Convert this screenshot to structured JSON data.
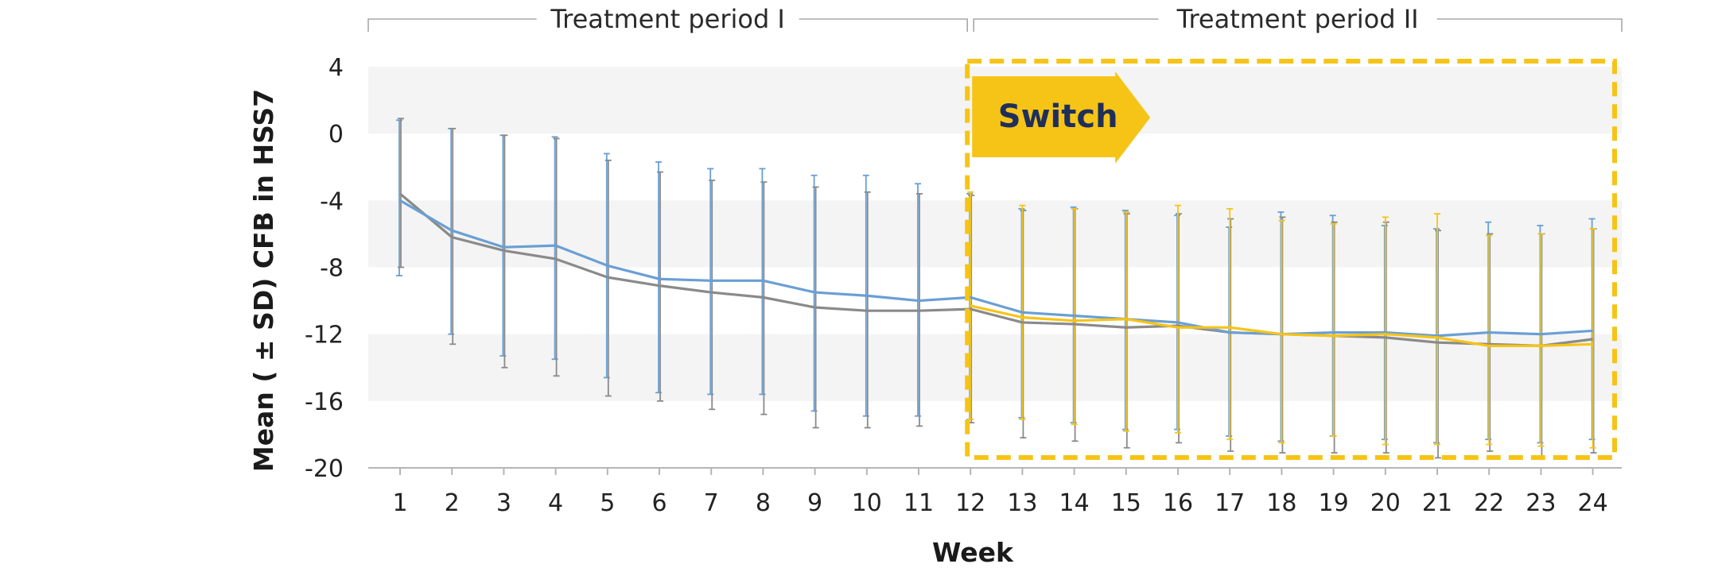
{
  "chart_data": {
    "type": "line",
    "xlabel": "Week",
    "ylabel": "Mean ( ± SD) CFB in HSS7",
    "ylim": [
      -20,
      4
    ],
    "yticks": [
      4,
      0,
      -4,
      -8,
      -12,
      -16,
      -20
    ],
    "x": [
      1,
      2,
      3,
      4,
      5,
      6,
      7,
      8,
      9,
      10,
      11,
      12,
      13,
      14,
      15,
      16,
      17,
      18,
      19,
      20,
      21,
      22,
      23,
      24
    ],
    "periods": [
      {
        "label": "Treatment period I",
        "from": 0.4,
        "to": 12
      },
      {
        "label": "Treatment period II",
        "from": 12,
        "to": 24.9
      }
    ],
    "annotation": {
      "label": "Switch",
      "week": 12
    },
    "colors": {
      "blue": "#6a9fd4",
      "gray": "#8a8a8a",
      "yellow": "#f6c416",
      "band": "#f4f4f4",
      "axis": "#b5b5b5"
    },
    "series": [
      {
        "color": "blue",
        "x": [
          1,
          2,
          3,
          4,
          5,
          6,
          7,
          8,
          9,
          10,
          11,
          12,
          13,
          14,
          15,
          16,
          17,
          18,
          19,
          20,
          21,
          22,
          23,
          24
        ],
        "values": [
          -4.0,
          -5.8,
          -6.8,
          -6.7,
          -7.9,
          -8.7,
          -8.8,
          -8.8,
          -9.5,
          -9.7,
          -10.0,
          -9.8,
          -10.7,
          -10.9,
          -11.1,
          -11.3,
          -11.9,
          -12.0,
          -11.9,
          -11.9,
          -12.1,
          -11.9,
          -12.0,
          -11.8
        ],
        "sd_low": [
          -8.5,
          -12.0,
          -13.3,
          -13.5,
          -14.6,
          -15.5,
          -15.6,
          -15.6,
          -16.6,
          -16.9,
          -16.9,
          -17.1,
          -17.0,
          -17.3,
          -17.7,
          -17.7,
          -18.1,
          -18.4,
          -18.1,
          -18.3,
          -18.5,
          -18.3,
          -18.5,
          -18.3
        ],
        "sd_high": [
          0.8,
          0.3,
          -0.1,
          -0.2,
          -1.2,
          -1.7,
          -2.1,
          -2.1,
          -2.5,
          -2.5,
          -3.0,
          -3.6,
          -4.5,
          -4.4,
          -4.6,
          -4.9,
          -5.6,
          -4.7,
          -4.9,
          -5.5,
          -5.7,
          -5.3,
          -5.5,
          -5.1
        ]
      },
      {
        "color": "gray",
        "x": [
          1,
          2,
          3,
          4,
          5,
          6,
          7,
          8,
          9,
          10,
          11,
          12,
          13,
          14,
          15,
          16,
          17,
          18,
          19,
          20,
          21,
          22,
          23,
          24
        ],
        "values": [
          -3.6,
          -6.2,
          -7.0,
          -7.5,
          -8.6,
          -9.1,
          -9.5,
          -9.8,
          -10.4,
          -10.6,
          -10.6,
          -10.5,
          -11.3,
          -11.4,
          -11.6,
          -11.5,
          -11.9,
          -12.0,
          -12.1,
          -12.2,
          -12.5,
          -12.6,
          -12.7,
          -12.3
        ],
        "sd_low": [
          -8.0,
          -12.6,
          -14.0,
          -14.5,
          -15.7,
          -16.0,
          -16.5,
          -16.8,
          -17.6,
          -17.6,
          -17.5,
          -17.3,
          -18.2,
          -18.4,
          -18.8,
          -18.5,
          -19.0,
          -19.1,
          -19.1,
          -19.1,
          -19.4,
          -19.0,
          -19.4,
          -19.1
        ],
        "sd_high": [
          0.9,
          0.3,
          -0.1,
          -0.3,
          -1.6,
          -2.3,
          -2.8,
          -2.9,
          -3.2,
          -3.5,
          -3.6,
          -3.7,
          -4.6,
          -4.5,
          -4.8,
          -4.8,
          -5.1,
          -5.0,
          -5.3,
          -5.3,
          -5.8,
          -6.0,
          -6.0,
          -5.7
        ]
      },
      {
        "color": "yellow",
        "x": [
          12,
          13,
          14,
          15,
          16,
          17,
          18,
          19,
          20,
          21,
          22,
          23,
          24
        ],
        "values": [
          -10.3,
          -11.0,
          -11.2,
          -11.1,
          -11.6,
          -11.6,
          -12.0,
          -12.1,
          -12.0,
          -12.2,
          -12.7,
          -12.7,
          -12.6
        ],
        "sd_low": [
          -17.1,
          -17.1,
          -17.4,
          -17.8,
          -17.9,
          -18.3,
          -18.5,
          -18.1,
          -18.6,
          -18.6,
          -18.6,
          -18.7,
          -18.8
        ],
        "sd_high": [
          -3.5,
          -4.3,
          -4.5,
          -4.7,
          -4.3,
          -4.5,
          -5.2,
          -5.4,
          -5.0,
          -4.8,
          -6.1,
          -6.0,
          -5.7
        ]
      }
    ]
  }
}
